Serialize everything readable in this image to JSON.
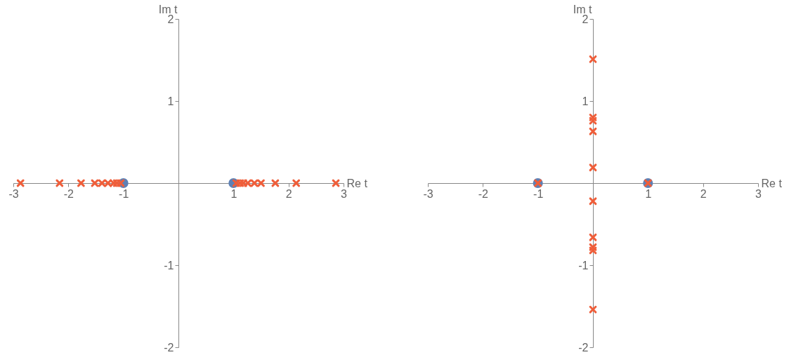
{
  "chart_data": [
    {
      "type": "scatter",
      "xlabel": "Re t",
      "ylabel": "Im t",
      "xlim": [
        -3,
        3
      ],
      "ylim": [
        -2,
        2
      ],
      "xticks": [
        -3,
        -2,
        -1,
        1,
        2,
        3
      ],
      "yticks": [
        -2,
        -1,
        1,
        2
      ],
      "grid": false,
      "legend": false,
      "series": [
        {
          "color": "#5e81b5",
          "marker": "circle",
          "x": [
            -1,
            1
          ],
          "values": [
            0,
            0
          ]
        },
        {
          "color": "#ef5e3a",
          "marker": "cross",
          "x": [
            -2.87,
            -2.16,
            -1.77,
            -1.52,
            -1.39,
            -1.28,
            -1.18,
            -1.12,
            -1.05,
            1.05,
            1.12,
            1.18,
            1.26,
            1.38,
            1.5,
            1.76,
            2.14,
            2.86
          ],
          "values": [
            0,
            0,
            0,
            0,
            0,
            0,
            0,
            0,
            0,
            0,
            0,
            0,
            0,
            0,
            0,
            0,
            0,
            0
          ]
        }
      ]
    },
    {
      "type": "scatter",
      "xlabel": "Re t",
      "ylabel": "Im t",
      "xlim": [
        -3,
        3
      ],
      "ylim": [
        -2,
        2
      ],
      "xticks": [
        -3,
        -2,
        -1,
        1,
        2,
        3
      ],
      "yticks": [
        -2,
        -1,
        1,
        2
      ],
      "grid": false,
      "legend": false,
      "series": [
        {
          "color": "#5e81b5",
          "marker": "circle",
          "x": [
            -1,
            1
          ],
          "values": [
            0,
            0
          ]
        },
        {
          "color": "#ef5e3a",
          "marker": "cross",
          "x": [
            -1,
            1,
            0,
            0,
            0,
            0,
            0,
            0,
            0,
            0,
            0,
            0
          ],
          "values": [
            0,
            0,
            1.51,
            0.8,
            0.76,
            0.63,
            0.19,
            -0.22,
            -0.66,
            -0.78,
            -0.82,
            -1.54
          ]
        }
      ]
    }
  ]
}
